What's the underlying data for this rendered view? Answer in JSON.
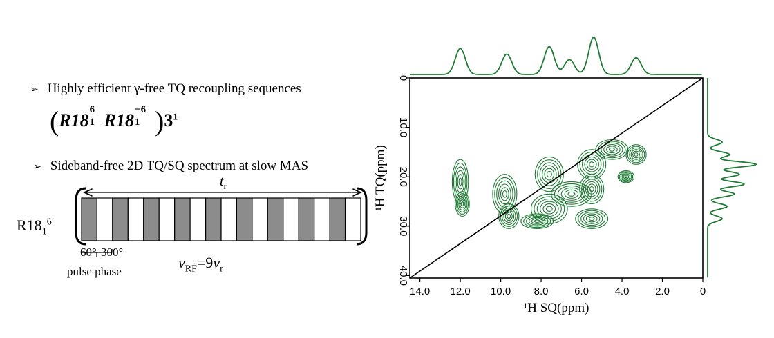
{
  "bullets": [
    {
      "glyph": "➢",
      "text": "Highly efficient γ-free TQ recoupling sequences"
    },
    {
      "glyph": "➢",
      "text": "Sideband-free 2D TQ/SQ spectrum at slow MAS"
    }
  ],
  "formula": {
    "open": "(",
    "close": ")",
    "t1": "R18",
    "t1_sup": "6",
    "t1_sub": "1",
    "t2": "R18",
    "t2_sup": "−6",
    "t2_sub": "1",
    "tail": "3",
    "tail_sup": "1"
  },
  "sequence": {
    "label": "R18",
    "label_sub": "1",
    "label_sup": "6",
    "period_label": "t",
    "period_sub": "r",
    "phase_a": "60°",
    "phase_b": "300°",
    "phase_caption": "pulse phase",
    "rf_v": "ν",
    "rf_sub": "RF",
    "rf_eq": "=9",
    "rf_v2": "ν",
    "rf_sub2": "r",
    "blocks": [
      "gray",
      "white",
      "gray",
      "white",
      "gray",
      "white",
      "gray",
      "white",
      "gray",
      "white",
      "gray",
      "white",
      "gray",
      "white",
      "gray",
      "white",
      "gray",
      "white"
    ],
    "colors": {
      "pulse_dark": "#8c8c8c",
      "pulse_light": "#ffffff"
    }
  },
  "spectrum": {
    "x_title": "¹H SQ(ppm)",
    "y_title": "¹H TQ(ppm)",
    "x_ticks": [
      "14.0",
      "12.0",
      "10.0",
      "8.0",
      "6.0",
      "4.0",
      "2.0",
      "0"
    ],
    "y_ticks": [
      "0",
      "10.0",
      "20.0",
      "30.0",
      "40.0"
    ],
    "contour_color": "#1e7b34",
    "diagonal_color": "#000000"
  },
  "chart_data": {
    "type": "heatmap",
    "title": "",
    "xlabel": "¹H SQ(ppm)",
    "ylabel": "¹H TQ(ppm)",
    "xlim": [
      14.5,
      0
    ],
    "ylim": [
      0,
      40.5
    ],
    "x_ticks": [
      14.0,
      12.0,
      10.0,
      8.0,
      6.0,
      4.0,
      2.0,
      0
    ],
    "y_ticks": [
      0,
      10.0,
      20.0,
      30.0,
      40.0
    ],
    "peaks": [
      {
        "sq": 12.0,
        "tq": 21.0,
        "w": 0.4,
        "h": 4.5
      },
      {
        "sq": 11.9,
        "tq": 25.5,
        "w": 0.35,
        "h": 2.5
      },
      {
        "sq": 9.8,
        "tq": 23.5,
        "w": 0.6,
        "h": 4.0
      },
      {
        "sq": 9.6,
        "tq": 28.0,
        "w": 0.5,
        "h": 2.5
      },
      {
        "sq": 7.6,
        "tq": 19.5,
        "w": 0.7,
        "h": 3.5
      },
      {
        "sq": 7.6,
        "tq": 26.5,
        "w": 0.9,
        "h": 3.0
      },
      {
        "sq": 6.5,
        "tq": 23.5,
        "w": 1.0,
        "h": 2.5
      },
      {
        "sq": 5.5,
        "tq": 17.5,
        "w": 0.7,
        "h": 3.0
      },
      {
        "sq": 5.5,
        "tq": 22.5,
        "w": 0.6,
        "h": 3.0
      },
      {
        "sq": 4.5,
        "tq": 14.5,
        "w": 0.8,
        "h": 2.0
      },
      {
        "sq": 3.8,
        "tq": 20.0,
        "w": 0.4,
        "h": 1.2
      },
      {
        "sq": 3.3,
        "tq": 15.5,
        "w": 0.5,
        "h": 2.0
      },
      {
        "sq": 5.5,
        "tq": 28.5,
        "w": 0.8,
        "h": 2.0
      },
      {
        "sq": 8.2,
        "tq": 29.0,
        "w": 0.8,
        "h": 1.5
      }
    ],
    "sq_projection": [
      {
        "x": 12.0,
        "y": 0.7
      },
      {
        "x": 9.7,
        "y": 0.55
      },
      {
        "x": 7.6,
        "y": 0.75
      },
      {
        "x": 6.6,
        "y": 0.4
      },
      {
        "x": 5.4,
        "y": 1.0
      },
      {
        "x": 3.3,
        "y": 0.45
      }
    ],
    "tq_projection": [
      {
        "y": 13.0,
        "x": 0.3
      },
      {
        "y": 15.5,
        "x": 0.45
      },
      {
        "y": 17.5,
        "x": 1.0
      },
      {
        "y": 19.5,
        "x": 0.65
      },
      {
        "y": 21.5,
        "x": 0.75
      },
      {
        "y": 23.5,
        "x": 0.55
      },
      {
        "y": 26.0,
        "x": 0.4
      },
      {
        "y": 28.5,
        "x": 0.3
      }
    ]
  }
}
